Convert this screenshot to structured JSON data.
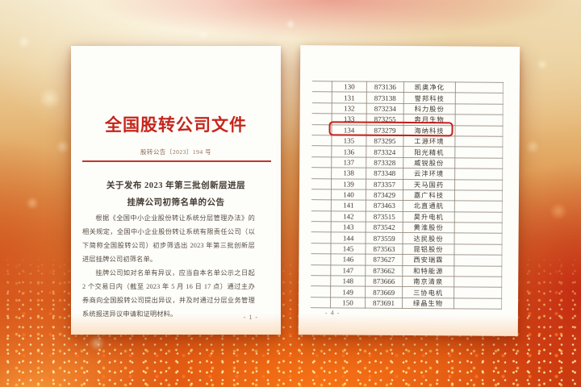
{
  "left_page": {
    "title": "全国股转公司文件",
    "doc_number": "股转公告〔2023〕194 号",
    "heading": {
      "line1": "关于发布 2023 年第三批创新层进层",
      "line2": "挂牌公司初筛名单的公告"
    },
    "paragraphs": [
      "根据《全国中小企业股份转让系统分层管理办法》的相关规定，全国中小企业股份转让系统有限责任公司（以下简称全国股转公司）初步筛选出 2023 年第三批创新层进层挂牌公司初筛名单。",
      "挂牌公司如对名单有异议，应当自本名单公示之日起 2 个交易日内（截至 2023 年 5 月 16 日 17 点）通过主办券商向全国股转公司提出异议，并及时通过分层业务管理系统报送异议申请和证明材料。"
    ],
    "page_number": "- 1 -"
  },
  "right_page": {
    "page_number": "- 4 -",
    "highlighted_code": "873279",
    "table_rows": [
      {
        "no": "130",
        "code": "873136",
        "name": "凯奥净化"
      },
      {
        "no": "131",
        "code": "873138",
        "name": "誉邦科技"
      },
      {
        "no": "132",
        "code": "873234",
        "name": "科力股份"
      },
      {
        "no": "133",
        "code": "873255",
        "name": "奔月生物"
      },
      {
        "no": "134",
        "code": "873279",
        "name": "海纳科技"
      },
      {
        "no": "135",
        "code": "873295",
        "name": "工源环境"
      },
      {
        "no": "136",
        "code": "873324",
        "name": "阳光精机"
      },
      {
        "no": "137",
        "code": "873328",
        "name": "威锐股份"
      },
      {
        "no": "138",
        "code": "873348",
        "name": "云沣环境"
      },
      {
        "no": "139",
        "code": "873357",
        "name": "天马国药"
      },
      {
        "no": "140",
        "code": "873429",
        "name": "嘉广科技"
      },
      {
        "no": "141",
        "code": "873463",
        "name": "北直通航"
      },
      {
        "no": "142",
        "code": "873515",
        "name": "昊升电机"
      },
      {
        "no": "143",
        "code": "873542",
        "name": "黄淮股份"
      },
      {
        "no": "144",
        "code": "873559",
        "name": "达民股份"
      },
      {
        "no": "145",
        "code": "873563",
        "name": "昆铝股份"
      },
      {
        "no": "146",
        "code": "873627",
        "name": "西安瑞霖"
      },
      {
        "no": "147",
        "code": "873662",
        "name": "和特能源"
      },
      {
        "no": "148",
        "code": "873666",
        "name": "南京清泉"
      },
      {
        "no": "149",
        "code": "873669",
        "name": "三协电机"
      },
      {
        "no": "150",
        "code": "873691",
        "name": "绿晶生物"
      }
    ]
  },
  "colors": {
    "title_red": "#c5261b",
    "rule_red": "#c0362a",
    "highlight_box_red": "#c42019",
    "body_text": "#584e44",
    "table_text": "#3e362e",
    "background_top_gold": "#f0e2c0",
    "background_bottom_orange": "#cf4310"
  }
}
